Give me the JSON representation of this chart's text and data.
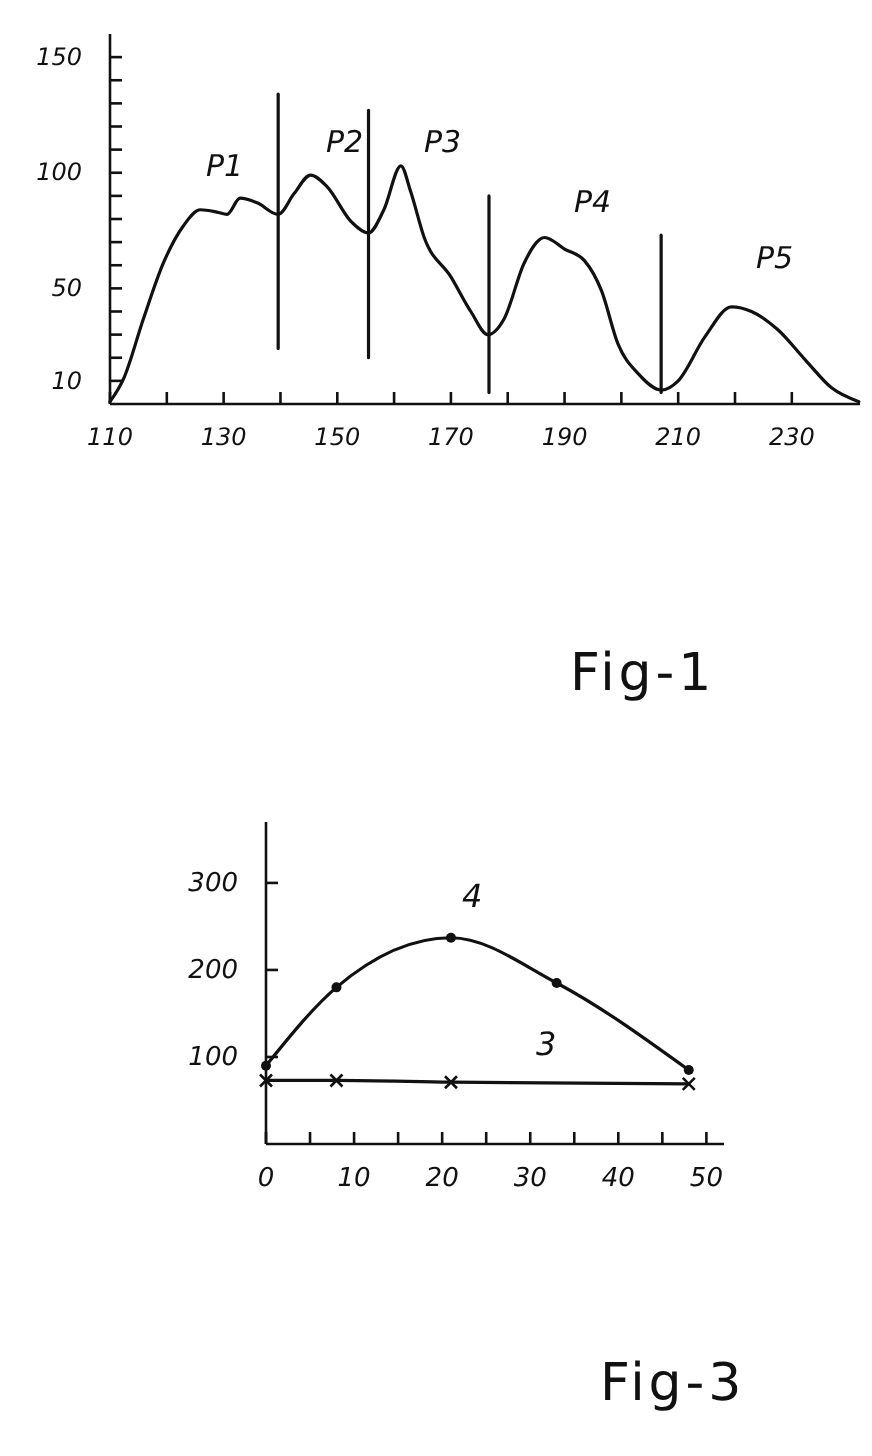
{
  "chart_data": [
    {
      "type": "line",
      "xlim": [
        110,
        242
      ],
      "ylim": [
        0,
        160
      ],
      "xticks": [
        110,
        {
          "value": 120,
          "label": null
        },
        130,
        {
          "value": 140,
          "label": null
        },
        150,
        {
          "value": 160,
          "label": null
        },
        170,
        {
          "value": 180,
          "label": null
        },
        190,
        {
          "value": 200,
          "label": null
        },
        210,
        {
          "value": 220,
          "label": null
        },
        230
      ],
      "yticks": [
        10,
        {
          "value": 20,
          "label": null
        },
        {
          "value": 30,
          "label": null
        },
        {
          "value": 40,
          "label": null
        },
        50,
        {
          "value": 60,
          "label": null
        },
        {
          "value": 70,
          "label": null
        },
        {
          "value": 80,
          "label": null
        },
        {
          "value": 90,
          "label": null
        },
        100,
        {
          "value": 110,
          "label": null
        },
        {
          "value": 120,
          "label": null
        },
        {
          "value": 130,
          "label": null
        },
        {
          "value": 140,
          "label": null
        },
        150
      ],
      "grid": false,
      "legend": false,
      "line_style": "solid",
      "series": [
        {
          "color": "#111111",
          "x": [
            110,
            112.4,
            115.9,
            119.4,
            122.9,
            125.9,
            128.8,
            130.6,
            132.9,
            135.9,
            139.6,
            142.4,
            145.3,
            148.2,
            152.4,
            155.5,
            158.2,
            161.2,
            162.9,
            165.3,
            170,
            173.5,
            176.5,
            179.4,
            182.9,
            186.5,
            190,
            193.5,
            196.5,
            199.4,
            203,
            207.1,
            210,
            214.7,
            219.4,
            222.9,
            227.6,
            232.4,
            237,
            241.8
          ],
          "values": [
            1,
            11,
            37,
            61,
            77,
            84,
            83,
            82,
            89,
            87,
            82,
            91,
            99,
            94,
            79,
            74,
            84,
            103,
            92,
            72,
            55,
            40,
            30,
            37,
            61,
            72,
            67,
            62,
            49,
            26,
            13,
            6,
            10,
            29,
            42,
            40,
            32,
            19,
            7,
            1
          ]
        },
        {
          "color": "#111111",
          "x": [
            139.6,
            139.6
          ],
          "values": [
            24,
            134
          ]
        },
        {
          "color": "#111111",
          "x": [
            155.5,
            155.5
          ],
          "values": [
            20,
            127
          ]
        },
        {
          "color": "#111111",
          "x": [
            176.7,
            176.7
          ],
          "values": [
            5,
            90
          ]
        },
        {
          "color": "#111111",
          "x": [
            207,
            207
          ],
          "values": [
            5,
            73
          ]
        }
      ],
      "annotations": [
        "P1",
        "P2",
        "P3",
        "P4",
        "P5",
        "Fig-1"
      ]
    },
    {
      "type": "line",
      "xlim": [
        0,
        52
      ],
      "ylim": [
        0,
        370
      ],
      "xticks": [
        0,
        {
          "value": 5,
          "label": null
        },
        10,
        {
          "value": 15,
          "label": null
        },
        20,
        {
          "value": 25,
          "label": null
        },
        30,
        {
          "value": 35,
          "label": null
        },
        40,
        {
          "value": 45,
          "label": null
        },
        50
      ],
      "yticks": [
        100,
        200,
        300
      ],
      "grid": false,
      "legend": false,
      "line_style": "solid",
      "series": [
        {
          "name": "4",
          "color": "#111111",
          "marker": "circle",
          "x": [
            0,
            8,
            21,
            33,
            48
          ],
          "values": [
            90,
            180,
            237,
            185,
            85
          ]
        },
        {
          "name": "3",
          "color": "#111111",
          "marker": "cross",
          "x": [
            0,
            8,
            21,
            48
          ],
          "values": [
            73,
            73,
            71,
            69
          ]
        }
      ],
      "annotations": [
        "Fig-3"
      ]
    }
  ]
}
